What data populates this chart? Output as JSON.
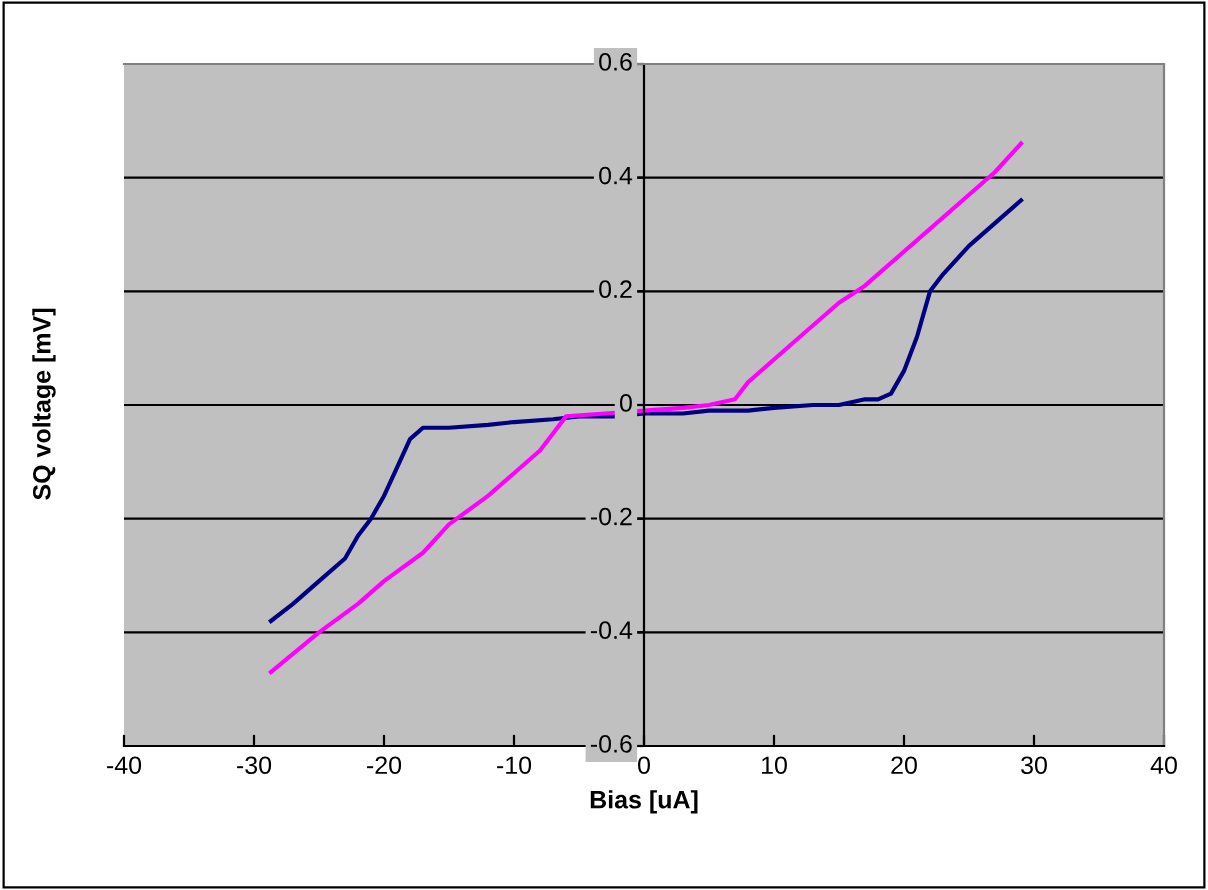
{
  "chart_data": {
    "type": "line",
    "xlabel": "Bias [uA]",
    "ylabel": "SQ voltage [mV]",
    "xlim": [
      -40,
      40
    ],
    "xticks": [
      -40,
      -30,
      -20,
      -10,
      0,
      10,
      20,
      30,
      40
    ],
    "ylim": [
      -0.6,
      0.6
    ],
    "yticks": [
      -0.6,
      -0.4,
      -0.2,
      0,
      0.2,
      0.4,
      0.6
    ],
    "grid": "y",
    "legend": false,
    "marker": "none",
    "line_style": "solid",
    "series": [
      {
        "color": "#000080",
        "x": [
          -28.7,
          -27,
          -25,
          -23,
          -22,
          -21,
          -20,
          -19,
          -18,
          -17,
          -15,
          -12,
          -10,
          -7,
          -5,
          -2,
          0,
          3,
          5,
          8,
          10,
          13,
          15,
          17,
          18,
          19,
          20,
          21,
          22,
          23,
          25,
          27,
          29
        ],
        "values": [
          -0.38,
          -0.35,
          -0.31,
          -0.27,
          -0.23,
          -0.2,
          -0.16,
          -0.11,
          -0.06,
          -0.04,
          -0.04,
          -0.035,
          -0.03,
          -0.025,
          -0.02,
          -0.02,
          -0.015,
          -0.015,
          -0.01,
          -0.01,
          -0.005,
          0,
          0,
          0.01,
          0.01,
          0.02,
          0.06,
          0.12,
          0.2,
          0.23,
          0.28,
          0.32,
          0.36
        ]
      },
      {
        "color": "#ff00ff",
        "x": [
          -28.7,
          -25,
          -22,
          -20,
          -17,
          -15,
          -12,
          -10,
          -8,
          -7,
          -6,
          -3,
          0,
          3,
          5,
          7,
          8,
          10,
          12,
          15,
          17,
          20,
          22,
          25,
          27,
          29
        ],
        "values": [
          -0.47,
          -0.4,
          -0.35,
          -0.31,
          -0.26,
          -0.21,
          -0.16,
          -0.12,
          -0.08,
          -0.05,
          -0.02,
          -0.015,
          -0.01,
          -0.005,
          0,
          0.01,
          0.04,
          0.08,
          0.12,
          0.18,
          0.21,
          0.27,
          0.31,
          0.37,
          0.41,
          0.46
        ]
      }
    ]
  }
}
